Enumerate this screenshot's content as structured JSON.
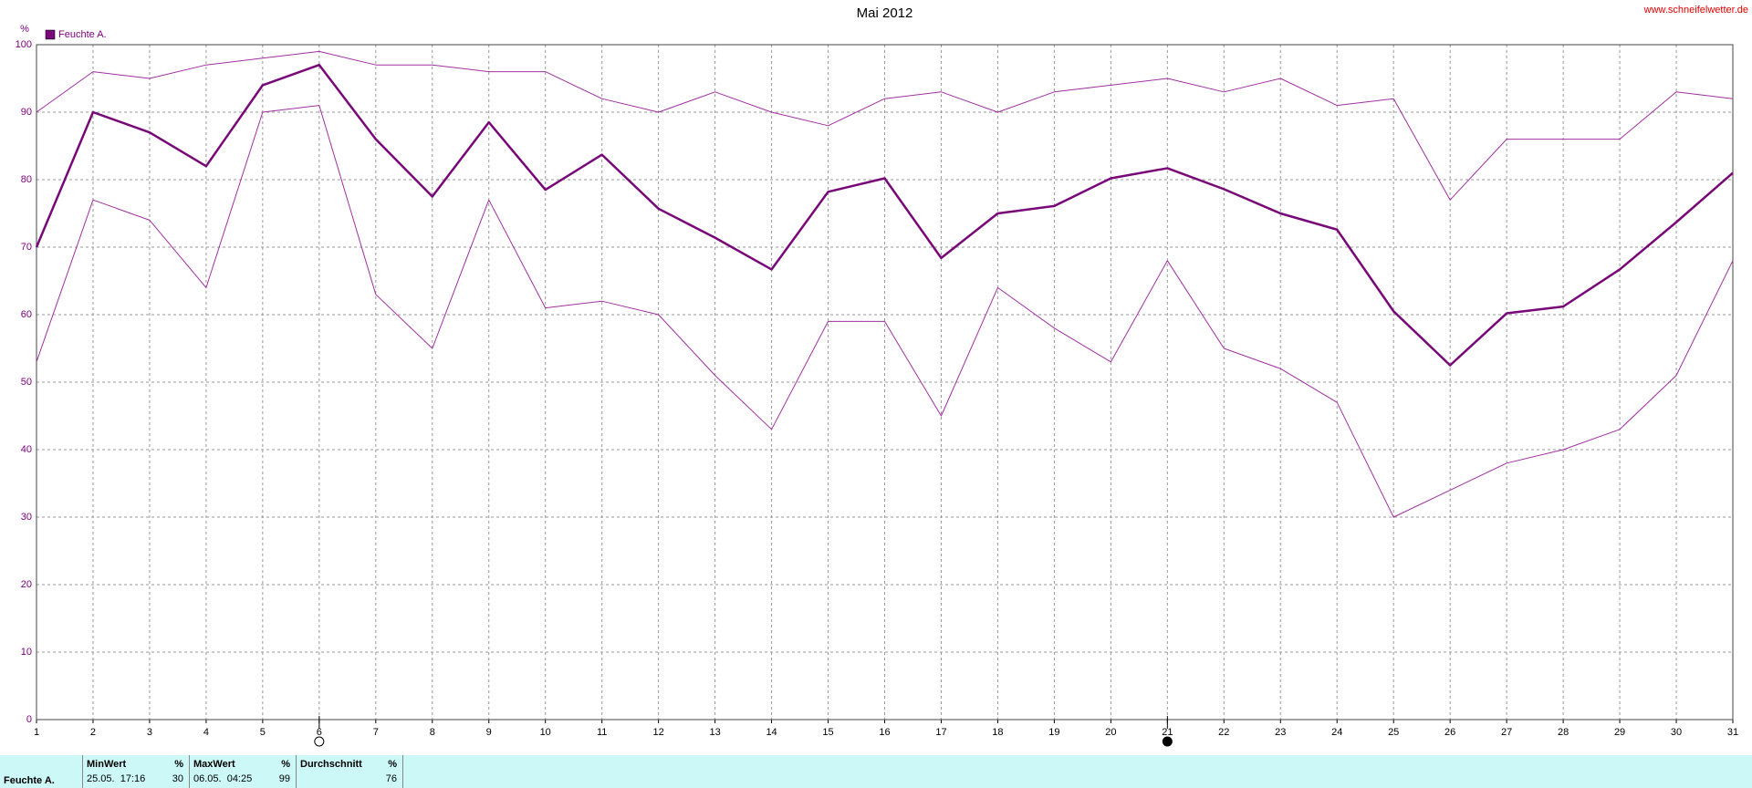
{
  "chart_data": {
    "type": "line",
    "title": "Mai 2012",
    "source": "www.schneifelwetter.de",
    "y_unit": "%",
    "x": [
      1,
      2,
      3,
      4,
      5,
      6,
      7,
      8,
      9,
      10,
      11,
      12,
      13,
      14,
      15,
      16,
      17,
      18,
      19,
      20,
      21,
      22,
      23,
      24,
      25,
      26,
      27,
      28,
      29,
      30,
      31
    ],
    "xlim": [
      1,
      31
    ],
    "xticks": [
      1,
      2,
      3,
      4,
      5,
      6,
      7,
      8,
      9,
      10,
      11,
      12,
      13,
      14,
      15,
      16,
      17,
      18,
      19,
      20,
      21,
      22,
      23,
      24,
      25,
      26,
      27,
      28,
      29,
      30,
      31
    ],
    "ylim": [
      0,
      100
    ],
    "yticks": [
      0,
      10,
      20,
      30,
      40,
      50,
      60,
      70,
      80,
      90,
      100
    ],
    "grid": true,
    "legend": "top-left",
    "series": [
      {
        "color": "#a030a0",
        "values": [
          90,
          96,
          95,
          97,
          98,
          99,
          97,
          97,
          96,
          96,
          92,
          90,
          93,
          90,
          88,
          92,
          93,
          90,
          93,
          94,
          95,
          93,
          95,
          91,
          92,
          77,
          86,
          86,
          86,
          93,
          92
        ]
      },
      {
        "name": "Feuchte A.",
        "color": "#780878",
        "values": [
          70,
          90,
          87,
          82,
          94,
          97,
          86,
          77.5,
          88.5,
          78.5,
          83.7,
          75.7,
          71.4,
          66.7,
          78.2,
          80.2,
          68.4,
          75,
          76.1,
          80.2,
          81.7,
          78.6,
          75,
          72.6,
          60.5,
          52.5,
          60.2,
          61.2,
          66.7,
          73.7,
          81
        ]
      },
      {
        "color": "#a030a0",
        "values": [
          53,
          77,
          74,
          64,
          90,
          91,
          63,
          55,
          77,
          61,
          62,
          60,
          51,
          43,
          59,
          59,
          45,
          64,
          58,
          53,
          68,
          55,
          52,
          47,
          30,
          34,
          38,
          40,
          43,
          51,
          68
        ]
      }
    ],
    "full_moon_day": 6,
    "new_moon_day": 21
  },
  "summary": {
    "label": "Feuchte A.",
    "columns": [
      {
        "title": "MinWert",
        "unit": "%",
        "time": "25.05.  17:16",
        "value": 30
      },
      {
        "title": "MaxWert",
        "unit": "%",
        "time": "06.05.  04:25",
        "value": 99
      },
      {
        "title": "Durchschnitt",
        "unit": "%",
        "time": "",
        "value": 76
      }
    ]
  }
}
